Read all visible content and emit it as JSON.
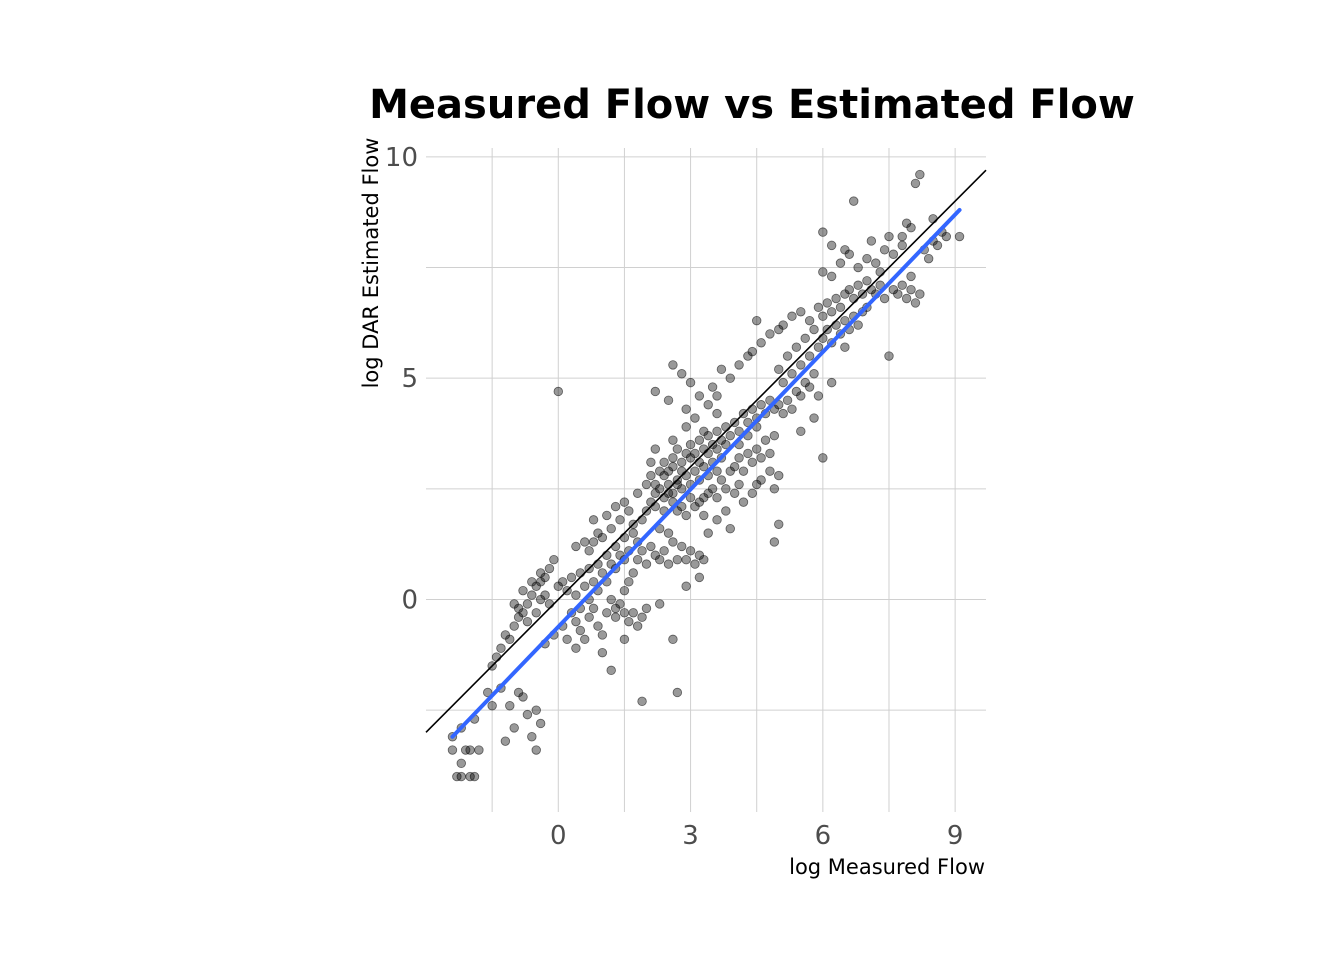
{
  "chart_data": {
    "type": "scatter",
    "title": "Measured Flow vs Estimated Flow",
    "xlabel": "log Measured Flow",
    "ylabel": "log DAR Estimated Flow",
    "xlim": [
      -3.0,
      9.7
    ],
    "ylim": [
      -4.8,
      10.2
    ],
    "x_ticks": [
      0,
      3,
      6,
      9
    ],
    "y_ticks": [
      0,
      5,
      10
    ],
    "grid": true,
    "point_color": "#000000",
    "point_alpha": 0.4,
    "identity_line": {
      "color": "#000000",
      "slope": 1,
      "intercept": 0
    },
    "fit_line": {
      "color": "#3366FF",
      "x": [
        -2.4,
        9.1
      ],
      "y": [
        -3.1,
        8.8
      ]
    },
    "points": [
      [
        -2.4,
        -3.4
      ],
      [
        -2.3,
        -4.0
      ],
      [
        -2.2,
        -3.7
      ],
      [
        -2.2,
        -4.0
      ],
      [
        -2.1,
        -3.4
      ],
      [
        -2.0,
        -4.0
      ],
      [
        -2.0,
        -3.4
      ],
      [
        -1.9,
        -4.0
      ],
      [
        -1.8,
        -3.4
      ],
      [
        -2.4,
        -3.1
      ],
      [
        -2.2,
        -2.9
      ],
      [
        -1.9,
        -2.7
      ],
      [
        -1.6,
        -2.1
      ],
      [
        -1.5,
        -2.4
      ],
      [
        -1.3,
        -2.0
      ],
      [
        -1.1,
        -2.4
      ],
      [
        -0.9,
        -2.1
      ],
      [
        -0.7,
        -2.6
      ],
      [
        -0.6,
        -3.1
      ],
      [
        -0.5,
        -3.4
      ],
      [
        -0.4,
        -2.8
      ],
      [
        -0.5,
        -2.5
      ],
      [
        -0.8,
        -2.2
      ],
      [
        -1.0,
        -2.9
      ],
      [
        -1.2,
        -3.2
      ],
      [
        -1.5,
        -1.5
      ],
      [
        -1.4,
        -1.3
      ],
      [
        -1.3,
        -1.1
      ],
      [
        -1.2,
        -0.8
      ],
      [
        -1.1,
        -0.9
      ],
      [
        -1.0,
        -0.6
      ],
      [
        -0.9,
        -0.4
      ],
      [
        -0.8,
        -0.3
      ],
      [
        -0.7,
        -0.1
      ],
      [
        -0.6,
        0.1
      ],
      [
        -0.5,
        0.3
      ],
      [
        -0.4,
        0.4
      ],
      [
        -0.3,
        0.5
      ],
      [
        -0.2,
        0.7
      ],
      [
        -0.1,
        0.9
      ],
      [
        -0.9,
        -0.2
      ],
      [
        -0.7,
        -0.5
      ],
      [
        -0.5,
        -0.3
      ],
      [
        -0.3,
        0.1
      ],
      [
        -0.2,
        -0.1
      ],
      [
        -0.4,
        0.0
      ],
      [
        -1.0,
        -0.1
      ],
      [
        -0.8,
        0.2
      ],
      [
        -0.6,
        0.4
      ],
      [
        -0.4,
        0.6
      ],
      [
        0.0,
        4.7
      ],
      [
        0.0,
        0.3
      ],
      [
        0.1,
        0.4
      ],
      [
        0.2,
        0.2
      ],
      [
        0.3,
        0.5
      ],
      [
        0.4,
        0.1
      ],
      [
        0.5,
        0.6
      ],
      [
        0.6,
        0.3
      ],
      [
        0.7,
        0.7
      ],
      [
        0.8,
        0.4
      ],
      [
        0.9,
        0.8
      ],
      [
        1.0,
        0.6
      ],
      [
        1.1,
        1.0
      ],
      [
        1.2,
        0.8
      ],
      [
        1.3,
        1.2
      ],
      [
        1.4,
        1.0
      ],
      [
        1.5,
        1.4
      ],
      [
        1.6,
        1.1
      ],
      [
        1.7,
        1.5
      ],
      [
        1.8,
        1.3
      ],
      [
        0.3,
        -0.3
      ],
      [
        0.4,
        -0.5
      ],
      [
        0.5,
        -0.7
      ],
      [
        0.6,
        -0.9
      ],
      [
        0.7,
        -0.4
      ],
      [
        0.8,
        -0.2
      ],
      [
        0.9,
        -0.6
      ],
      [
        1.0,
        -0.8
      ],
      [
        1.1,
        -0.3
      ],
      [
        1.2,
        0.0
      ],
      [
        0.4,
        1.2
      ],
      [
        0.6,
        1.3
      ],
      [
        0.8,
        1.3
      ],
      [
        1.0,
        1.4
      ],
      [
        1.2,
        1.6
      ],
      [
        1.4,
        1.8
      ],
      [
        1.5,
        2.2
      ],
      [
        1.6,
        2.0
      ],
      [
        0.9,
        1.5
      ],
      [
        0.7,
        1.1
      ],
      [
        1.3,
        -0.2
      ],
      [
        1.3,
        -0.4
      ],
      [
        1.4,
        -0.1
      ],
      [
        1.5,
        -0.3
      ],
      [
        1.6,
        -0.5
      ],
      [
        1.7,
        -0.3
      ],
      [
        1.8,
        -0.6
      ],
      [
        1.9,
        -0.4
      ],
      [
        2.0,
        -0.2
      ],
      [
        1.5,
        0.2
      ],
      [
        1.6,
        0.4
      ],
      [
        1.7,
        0.6
      ],
      [
        1.8,
        0.9
      ],
      [
        1.9,
        1.1
      ],
      [
        2.0,
        0.8
      ],
      [
        2.1,
        1.2
      ],
      [
        2.2,
        1.0
      ],
      [
        2.3,
        0.9
      ],
      [
        2.4,
        1.1
      ],
      [
        2.5,
        0.8
      ],
      [
        2.6,
        1.3
      ],
      [
        2.7,
        0.9
      ],
      [
        2.8,
        1.2
      ],
      [
        2.9,
        0.9
      ],
      [
        3.0,
        1.1
      ],
      [
        3.1,
        0.8
      ],
      [
        3.2,
        1.0
      ],
      [
        3.3,
        0.9
      ],
      [
        2.5,
        1.5
      ],
      [
        2.3,
        1.6
      ],
      [
        1.7,
        1.7
      ],
      [
        1.9,
        1.8
      ],
      [
        2.0,
        2.0
      ],
      [
        2.1,
        2.2
      ],
      [
        2.2,
        2.4
      ],
      [
        2.3,
        2.5
      ],
      [
        2.4,
        2.3
      ],
      [
        2.5,
        2.6
      ],
      [
        2.6,
        2.4
      ],
      [
        2.7,
        2.7
      ],
      [
        2.8,
        2.5
      ],
      [
        2.9,
        2.8
      ],
      [
        3.0,
        2.6
      ],
      [
        3.1,
        2.9
      ],
      [
        3.2,
        2.7
      ],
      [
        3.3,
        3.0
      ],
      [
        3.4,
        2.8
      ],
      [
        3.5,
        3.1
      ],
      [
        3.6,
        2.9
      ],
      [
        3.7,
        3.2
      ],
      [
        2.0,
        2.6
      ],
      [
        2.1,
        2.8
      ],
      [
        2.2,
        2.6
      ],
      [
        2.3,
        2.9
      ],
      [
        2.4,
        3.1
      ],
      [
        2.5,
        2.9
      ],
      [
        2.6,
        3.2
      ],
      [
        2.7,
        3.4
      ],
      [
        2.8,
        3.1
      ],
      [
        2.9,
        3.3
      ],
      [
        3.0,
        3.5
      ],
      [
        3.1,
        3.3
      ],
      [
        3.2,
        3.6
      ],
      [
        3.3,
        3.4
      ],
      [
        3.4,
        3.7
      ],
      [
        3.5,
        3.5
      ],
      [
        3.6,
        3.8
      ],
      [
        3.7,
        3.6
      ],
      [
        3.8,
        3.9
      ],
      [
        3.9,
        3.7
      ],
      [
        2.2,
        2.1
      ],
      [
        2.4,
        2.0
      ],
      [
        2.6,
        2.2
      ],
      [
        2.8,
        2.1
      ],
      [
        3.0,
        2.3
      ],
      [
        3.2,
        2.2
      ],
      [
        3.4,
        2.4
      ],
      [
        3.6,
        2.3
      ],
      [
        3.8,
        2.5
      ],
      [
        4.0,
        2.4
      ],
      [
        4.0,
        3.0
      ],
      [
        4.1,
        3.2
      ],
      [
        4.2,
        2.9
      ],
      [
        4.3,
        3.3
      ],
      [
        4.4,
        3.1
      ],
      [
        4.5,
        3.4
      ],
      [
        4.6,
        3.2
      ],
      [
        4.7,
        3.6
      ],
      [
        4.8,
        3.3
      ],
      [
        4.9,
        3.7
      ],
      [
        4.0,
        4.0
      ],
      [
        4.1,
        3.8
      ],
      [
        4.2,
        4.2
      ],
      [
        4.3,
        4.0
      ],
      [
        4.4,
        4.3
      ],
      [
        4.5,
        4.1
      ],
      [
        4.6,
        4.4
      ],
      [
        4.7,
        4.2
      ],
      [
        4.8,
        4.5
      ],
      [
        4.9,
        4.3
      ],
      [
        2.6,
        5.3
      ],
      [
        2.8,
        5.1
      ],
      [
        3.0,
        4.9
      ],
      [
        3.2,
        4.6
      ],
      [
        3.5,
        4.8
      ],
      [
        3.7,
        5.2
      ],
      [
        3.9,
        5.0
      ],
      [
        4.1,
        5.3
      ],
      [
        4.3,
        5.5
      ],
      [
        3.4,
        4.4
      ],
      [
        2.2,
        4.7
      ],
      [
        2.5,
        4.5
      ],
      [
        2.9,
        4.3
      ],
      [
        3.1,
        4.1
      ],
      [
        3.6,
        4.6
      ],
      [
        4.4,
        5.6
      ],
      [
        4.6,
        5.8
      ],
      [
        4.8,
        6.0
      ],
      [
        5.0,
        6.1
      ],
      [
        4.5,
        6.3
      ],
      [
        5.0,
        5.2
      ],
      [
        5.1,
        4.9
      ],
      [
        5.2,
        5.5
      ],
      [
        5.3,
        5.1
      ],
      [
        5.4,
        5.7
      ],
      [
        5.5,
        5.3
      ],
      [
        5.6,
        5.9
      ],
      [
        5.7,
        5.5
      ],
      [
        5.8,
        6.1
      ],
      [
        5.9,
        5.7
      ],
      [
        5.0,
        4.4
      ],
      [
        5.1,
        4.2
      ],
      [
        5.2,
        4.5
      ],
      [
        5.3,
        4.3
      ],
      [
        5.4,
        4.7
      ],
      [
        5.5,
        4.6
      ],
      [
        5.6,
        4.9
      ],
      [
        5.7,
        4.8
      ],
      [
        5.8,
        5.1
      ],
      [
        5.9,
        4.6
      ],
      [
        5.1,
        6.2
      ],
      [
        5.3,
        6.4
      ],
      [
        5.5,
        6.5
      ],
      [
        5.7,
        6.3
      ],
      [
        5.9,
        6.6
      ],
      [
        6.0,
        6.4
      ],
      [
        6.1,
        6.7
      ],
      [
        6.2,
        6.5
      ],
      [
        6.3,
        6.8
      ],
      [
        6.4,
        6.6
      ],
      [
        6.0,
        5.9
      ],
      [
        6.1,
        6.1
      ],
      [
        6.2,
        5.8
      ],
      [
        6.3,
        6.2
      ],
      [
        6.4,
        6.0
      ],
      [
        6.5,
        6.3
      ],
      [
        6.6,
        6.1
      ],
      [
        6.7,
        6.4
      ],
      [
        6.8,
        6.2
      ],
      [
        6.9,
        6.5
      ],
      [
        6.5,
        6.9
      ],
      [
        6.6,
        7.0
      ],
      [
        6.7,
        6.8
      ],
      [
        6.8,
        7.1
      ],
      [
        6.9,
        6.9
      ],
      [
        7.0,
        7.2
      ],
      [
        7.1,
        7.0
      ],
      [
        7.2,
        6.9
      ],
      [
        7.3,
        7.1
      ],
      [
        7.4,
        6.8
      ],
      [
        6.0,
        7.4
      ],
      [
        6.2,
        7.3
      ],
      [
        6.4,
        7.6
      ],
      [
        6.6,
        7.8
      ],
      [
        6.8,
        7.5
      ],
      [
        7.0,
        7.7
      ],
      [
        7.2,
        7.6
      ],
      [
        7.4,
        7.9
      ],
      [
        7.6,
        7.8
      ],
      [
        7.8,
        8.0
      ],
      [
        6.0,
        8.3
      ],
      [
        6.2,
        8.0
      ],
      [
        6.5,
        7.9
      ],
      [
        6.7,
        9.0
      ],
      [
        7.1,
        8.1
      ],
      [
        7.5,
        8.2
      ],
      [
        7.9,
        8.5
      ],
      [
        8.0,
        7.3
      ],
      [
        8.2,
        9.6
      ],
      [
        8.1,
        9.4
      ],
      [
        7.6,
        7.0
      ],
      [
        7.7,
        6.9
      ],
      [
        7.8,
        7.1
      ],
      [
        7.9,
        6.8
      ],
      [
        8.0,
        7.0
      ],
      [
        8.1,
        6.7
      ],
      [
        8.2,
        6.9
      ],
      [
        7.5,
        5.5
      ],
      [
        7.3,
        7.4
      ],
      [
        7.0,
        6.6
      ],
      [
        8.3,
        7.9
      ],
      [
        8.4,
        7.7
      ],
      [
        8.5,
        8.1
      ],
      [
        8.6,
        8.0
      ],
      [
        8.7,
        8.3
      ],
      [
        8.8,
        8.2
      ],
      [
        9.1,
        8.2
      ],
      [
        8.0,
        8.4
      ],
      [
        7.8,
        8.2
      ],
      [
        8.5,
        8.6
      ],
      [
        4.9,
        2.5
      ],
      [
        5.0,
        2.8
      ],
      [
        5.0,
        1.7
      ],
      [
        4.9,
        1.3
      ],
      [
        4.5,
        2.6
      ],
      [
        6.0,
        3.2
      ],
      [
        5.5,
        3.8
      ],
      [
        6.5,
        5.7
      ],
      [
        6.2,
        4.9
      ],
      [
        5.8,
        4.1
      ],
      [
        1.2,
        -1.6
      ],
      [
        1.9,
        -2.3
      ],
      [
        2.7,
        -2.1
      ],
      [
        1.0,
        -1.2
      ],
      [
        0.4,
        -1.1
      ],
      [
        1.5,
        -0.9
      ],
      [
        2.6,
        -0.9
      ],
      [
        2.3,
        -0.1
      ],
      [
        2.9,
        0.3
      ],
      [
        3.2,
        0.5
      ],
      [
        3.4,
        1.5
      ],
      [
        3.6,
        1.8
      ],
      [
        3.8,
        2.0
      ],
      [
        3.9,
        1.6
      ],
      [
        4.1,
        2.6
      ],
      [
        4.2,
        2.2
      ],
      [
        4.4,
        2.4
      ],
      [
        4.6,
        2.7
      ],
      [
        4.8,
        2.9
      ],
      [
        3.3,
        1.9
      ],
      [
        1.1,
        1.9
      ],
      [
        1.3,
        2.1
      ],
      [
        0.8,
        1.8
      ],
      [
        2.1,
        3.1
      ],
      [
        2.2,
        3.4
      ],
      [
        1.8,
        2.4
      ],
      [
        2.6,
        3.6
      ],
      [
        2.9,
        3.9
      ],
      [
        3.3,
        3.8
      ],
      [
        3.6,
        4.2
      ],
      [
        -0.3,
        -1.0
      ],
      [
        -0.1,
        -0.8
      ],
      [
        0.1,
        -0.6
      ],
      [
        0.2,
        -0.9
      ],
      [
        0.5,
        -0.2
      ],
      [
        0.7,
        0.0
      ],
      [
        0.9,
        0.2
      ],
      [
        1.1,
        0.4
      ],
      [
        1.3,
        0.7
      ],
      [
        1.5,
        0.9
      ],
      [
        2.7,
        2.0
      ],
      [
        2.9,
        1.9
      ],
      [
        3.1,
        2.1
      ],
      [
        3.3,
        2.3
      ],
      [
        3.5,
        2.5
      ],
      [
        3.7,
        2.7
      ],
      [
        3.9,
        2.9
      ],
      [
        4.1,
        3.5
      ],
      [
        4.3,
        3.7
      ],
      [
        4.5,
        3.9
      ],
      [
        2.4,
        2.8
      ],
      [
        2.6,
        3.0
      ],
      [
        2.8,
        2.9
      ],
      [
        3.0,
        3.2
      ],
      [
        3.2,
        3.1
      ],
      [
        3.4,
        3.3
      ],
      [
        3.6,
        3.4
      ],
      [
        3.8,
        3.5
      ],
      [
        2.5,
        2.4
      ],
      [
        2.7,
        2.6
      ]
    ]
  }
}
